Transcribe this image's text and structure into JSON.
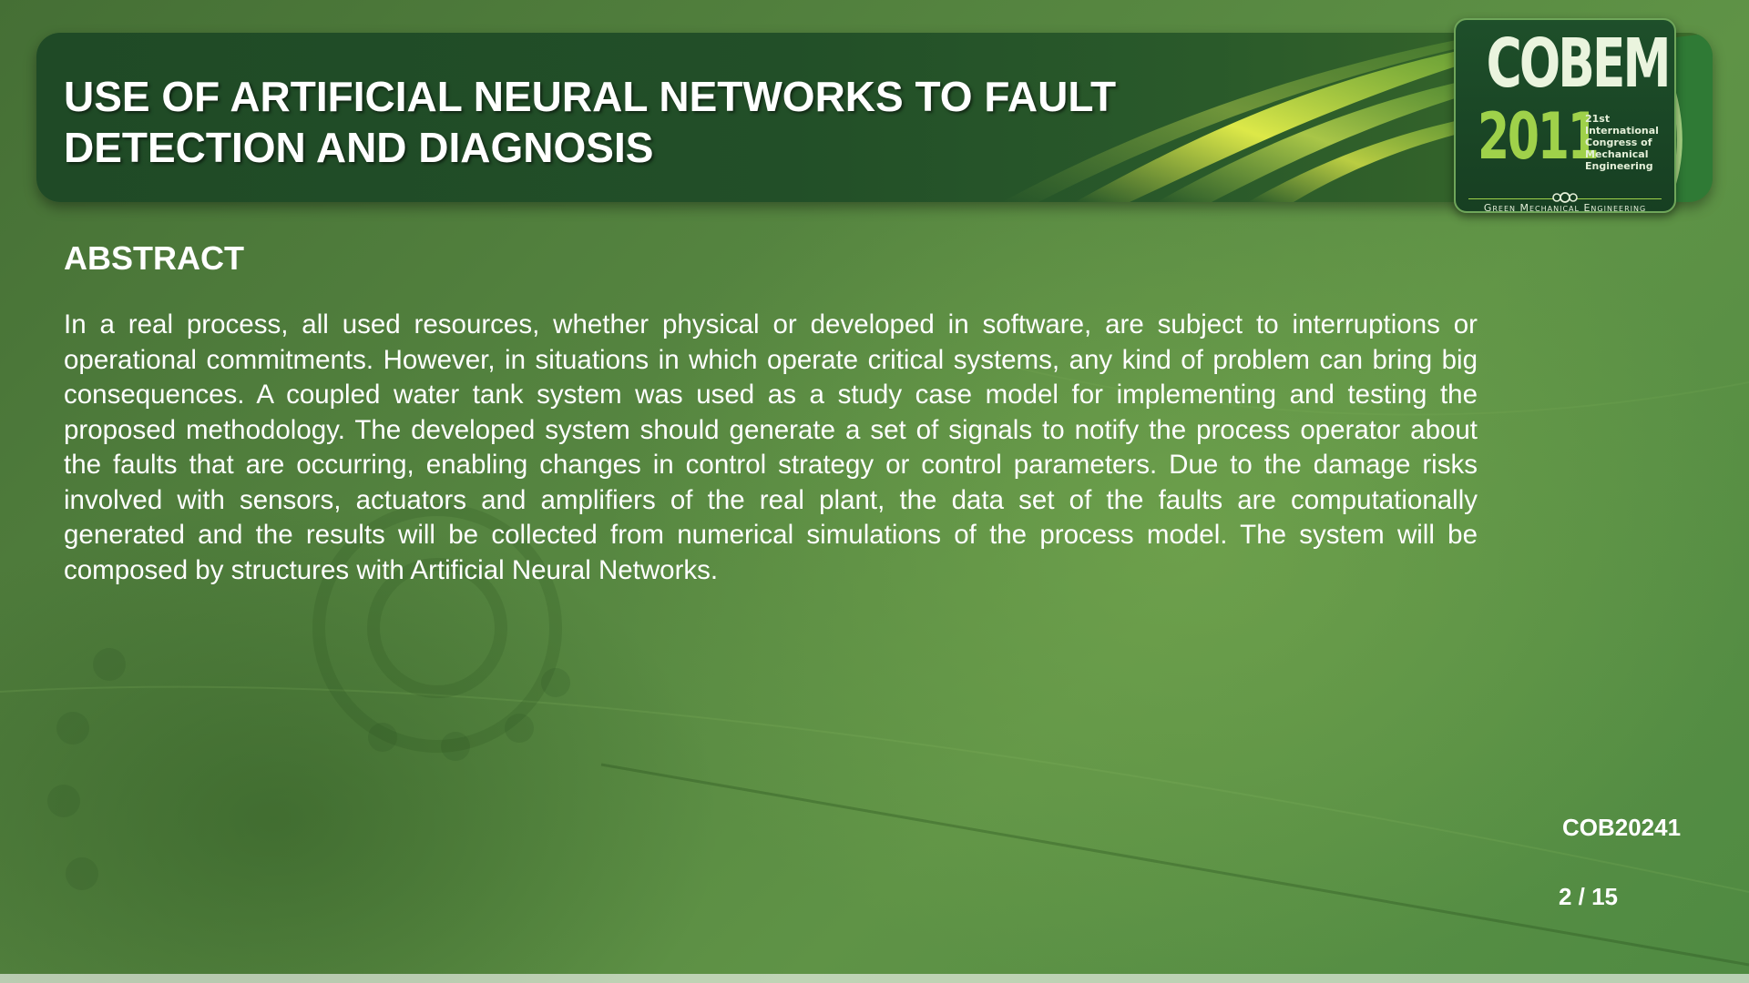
{
  "slide": {
    "title": "USE OF ARTIFICIAL NEURAL NETWORKS TO FAULT\nDETECTION AND DIAGNOSIS",
    "section_heading": "ABSTRACT",
    "abstract": "In a real process, all used resources, whether physical or developed in software, are subject to interruptions or operational commitments. However, in situations in which operate critical systems, any kind of problem can bring big consequences. A coupled water tank system was used as a study case model for implementing and testing the proposed methodology. The developed system should generate a set of signals to notify the process operator about the faults that are occurring, enabling changes in control strategy or control parameters. Due to the damage risks involved with sensors, actuators and amplifiers of the real plant, the data set of the faults are computationally generated and the results will be collected from numerical simulations of the process model. The system will be composed by structures with Artificial Neural Networks.",
    "paper_code": "COB20241",
    "page_indicator": "2 / 15"
  },
  "logo": {
    "name": "COBEM",
    "year": "2011",
    "edition_lines": [
      "21st",
      "International",
      "Congress of",
      "Mechanical",
      "Engineering"
    ],
    "tagline": "Green Mechanical Engineering"
  },
  "colors": {
    "background": "#54833f",
    "banner": "#224f28",
    "logo_accent": "#9fd14a",
    "text": "#ffffff"
  }
}
